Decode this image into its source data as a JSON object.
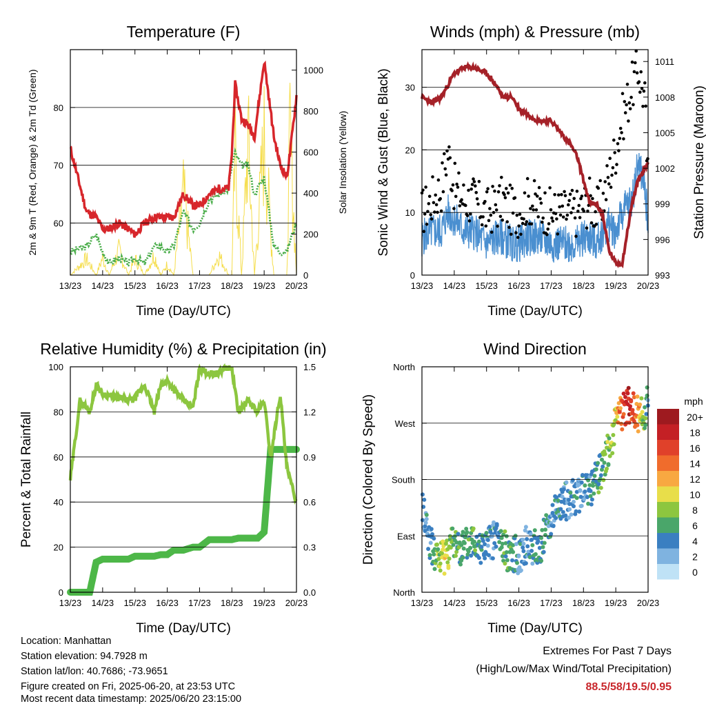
{
  "x_ticks": [
    "13/23",
    "14/23",
    "15/23",
    "16/23",
    "17/23",
    "18/23",
    "19/23",
    "20/23"
  ],
  "xlabel": "Time (Day/UTC)",
  "colors": {
    "temp": "#d7262b",
    "dewpoint": "#4cae4c",
    "solar": "#f5dd4a",
    "wind": "#4a8fd0",
    "gust": "#000000",
    "pressure": "#a52128",
    "rh": "#8cc63f",
    "precip": "#4db748"
  },
  "chart_data": [
    {
      "id": "temperature",
      "type": "line",
      "title": "Temperature (F)",
      "xlabel": "Time (Day/UTC)",
      "ylabel": "2m & 9m T (Red, Orange) & 2m Td (Green)",
      "ylabel_right": "Solar Insolation (Yellow)",
      "ylim": [
        51,
        90
      ],
      "yticks": [
        60,
        70,
        80
      ],
      "ylim_right": [
        0,
        1100
      ],
      "yticks_right": [
        0,
        200,
        400,
        600,
        800,
        1000
      ],
      "grid": true,
      "x": [
        0,
        0.5,
        0.8,
        1,
        1.2,
        1.5,
        1.8,
        2,
        2.3,
        2.6,
        2.8,
        3,
        3.2,
        3.5,
        3.8,
        4,
        4.3,
        4.6,
        4.9,
        5,
        5.1,
        5.3,
        5.5,
        5.7,
        6,
        6.3,
        6.5,
        6.7,
        6.8,
        7
      ],
      "series": [
        {
          "values": [
            73,
            62,
            61,
            59,
            59,
            60,
            59,
            58,
            60,
            61,
            61,
            61,
            61,
            65,
            63,
            63,
            65,
            66,
            66,
            72,
            84,
            78,
            77,
            75,
            88,
            75,
            70,
            68,
            72,
            82
          ]
        },
        {
          "values": [
            55,
            56,
            58,
            55,
            53,
            54,
            53,
            54,
            53,
            56,
            56,
            55,
            56,
            62,
            59,
            60,
            64,
            65,
            66,
            70,
            72,
            70,
            70,
            65,
            68,
            56,
            55,
            55,
            57,
            60
          ]
        }
      ],
      "solar": {
        "values": [
          0,
          120,
          0,
          130,
          0,
          180,
          0,
          120,
          0,
          150,
          0,
          80,
          0,
          600,
          0,
          0,
          0,
          150,
          0,
          0,
          900,
          0,
          1000,
          0,
          1000,
          0,
          0,
          0,
          1050,
          0
        ]
      }
    },
    {
      "id": "winds",
      "type": "line",
      "title": "Winds (mph) & Pressure (mb)",
      "xlabel": "Time (Day/UTC)",
      "ylabel": "Sonic Wind & Gust (Blue, Black)",
      "ylabel_right": "Station Pressure (Maroon)",
      "ylim": [
        0,
        36
      ],
      "yticks": [
        0,
        10,
        20,
        30
      ],
      "ylim_right": [
        993,
        1012
      ],
      "yticks_right": [
        993,
        996,
        999,
        1002,
        1005,
        1008,
        1011
      ],
      "grid": true,
      "x": [
        0,
        0.3,
        0.6,
        0.8,
        1,
        1.3,
        1.6,
        2,
        2.3,
        2.5,
        2.8,
        3,
        3.3,
        3.6,
        4,
        4.3,
        4.6,
        4.8,
        5,
        5.2,
        5.4,
        5.6,
        5.8,
        6,
        6.2,
        6.5,
        6.7,
        6.9,
        7
      ],
      "series": [
        {
          "values": [
            6,
            7,
            7,
            10,
            9,
            7,
            7,
            5,
            6,
            6,
            5,
            5,
            6,
            6,
            5,
            5,
            5,
            5,
            6,
            6,
            5,
            7,
            8,
            7,
            10,
            12,
            18,
            14,
            8
          ]
        },
        {
          "values": [
            10,
            12,
            14,
            20,
            14,
            12,
            12,
            10,
            11,
            12,
            10,
            10,
            12,
            11,
            10,
            10,
            10,
            10,
            11,
            12,
            10,
            12,
            16,
            20,
            25,
            30,
            33,
            28,
            14
          ]
        },
        {
          "values": [
            1008,
            1007.5,
            1008,
            1009,
            1010,
            1010.5,
            1010.5,
            1010,
            1009,
            1008,
            1008,
            1007,
            1006.5,
            1006,
            1006,
            1005,
            1004,
            1003,
            1001,
            999,
            999,
            998,
            995,
            994,
            994,
            999,
            1001,
            1002,
            1002.5
          ]
        }
      ]
    },
    {
      "id": "humidity",
      "type": "line",
      "title": "Relative Humidity (%) & Precipitation (in)",
      "xlabel": "Time (Day/UTC)",
      "ylabel": "Percent & Total Rainfall",
      "ylim": [
        0,
        100
      ],
      "yticks": [
        0,
        20,
        40,
        60,
        80,
        100
      ],
      "ylim_right": [
        0,
        1.5
      ],
      "yticks_right": [
        "0.0",
        "0.3",
        "0.6",
        "0.9",
        "1.2",
        "1.5"
      ],
      "grid": true,
      "x": [
        0,
        0.3,
        0.6,
        0.8,
        1,
        1.5,
        1.8,
        2,
        2.3,
        2.6,
        2.8,
        3,
        3.2,
        3.5,
        3.8,
        4,
        4.3,
        4.6,
        4.8,
        5,
        5.2,
        5.5,
        5.8,
        6,
        6.2,
        6.5,
        6.7,
        6.9,
        7
      ],
      "series": [
        {
          "values": [
            50,
            85,
            80,
            92,
            88,
            86,
            85,
            86,
            92,
            80,
            92,
            94,
            90,
            85,
            82,
            99,
            97,
            97,
            100,
            99,
            80,
            85,
            80,
            85,
            60,
            88,
            55,
            45,
            40
          ]
        },
        {
          "values": [
            0,
            0,
            0,
            0.2,
            0.22,
            0.22,
            0.22,
            0.24,
            0.24,
            0.24,
            0.25,
            0.25,
            0.28,
            0.28,
            0.3,
            0.3,
            0.35,
            0.35,
            0.35,
            0.35,
            0.36,
            0.36,
            0.36,
            0.4,
            0.95,
            0.95,
            0.95,
            0.95,
            0.95
          ]
        }
      ]
    },
    {
      "id": "wind_direction",
      "type": "scatter",
      "title": "Wind Direction",
      "xlabel": "Time (Day/UTC)",
      "ylabel": "Direction (Colored By Speed)",
      "yticks": [
        "North",
        "East",
        "South",
        "West",
        "North"
      ],
      "ylim": [
        0,
        360
      ],
      "grid": true,
      "x": [
        0,
        0.3,
        0.5,
        0.7,
        1,
        1.3,
        1.6,
        2,
        2.3,
        2.6,
        3,
        3.3,
        3.6,
        4,
        4.3,
        4.6,
        5,
        5.3,
        5.6,
        5.8,
        6,
        6.2,
        6.4,
        6.6,
        6.8,
        7
      ],
      "values": [
        140,
        70,
        50,
        60,
        80,
        70,
        85,
        70,
        90,
        65,
        60,
        80,
        65,
        120,
        140,
        150,
        160,
        170,
        200,
        230,
        270,
        290,
        300,
        290,
        280,
        300
      ],
      "speed": [
        3,
        4,
        8,
        10,
        6,
        5,
        6,
        4,
        3,
        6,
        4,
        3,
        5,
        4,
        4,
        4,
        3,
        5,
        6,
        8,
        10,
        16,
        18,
        14,
        10,
        4
      ],
      "colorbar": {
        "title": "mph",
        "labels": [
          "20+",
          "18",
          "16",
          "14",
          "12",
          "10",
          "8",
          "6",
          "4",
          "2",
          "0"
        ],
        "colors": [
          "#9e1a1f",
          "#c42025",
          "#e0412a",
          "#f06c2c",
          "#f8a841",
          "#e8de4a",
          "#8dc63f",
          "#4aa66a",
          "#3a7fc1",
          "#7fb3e0",
          "#bfe2f6"
        ]
      }
    }
  ],
  "footer": {
    "location": "Location: Manhattan",
    "elevation": "Station elevation: 94.7928 m",
    "latlon": "Station lat/lon: 40.7686; -73.9651",
    "created": "Figure created on Fri, 2025-06-20, at 23:53 UTC",
    "recent": "Most recent data timestamp: 2025/06/20 23:15:00"
  },
  "extremes": {
    "title": "Extremes For Past 7 Days",
    "subtitle": "(High/Low/Max Wind/Total Precipitation)",
    "values": "88.5/58/19.5/0.95"
  }
}
